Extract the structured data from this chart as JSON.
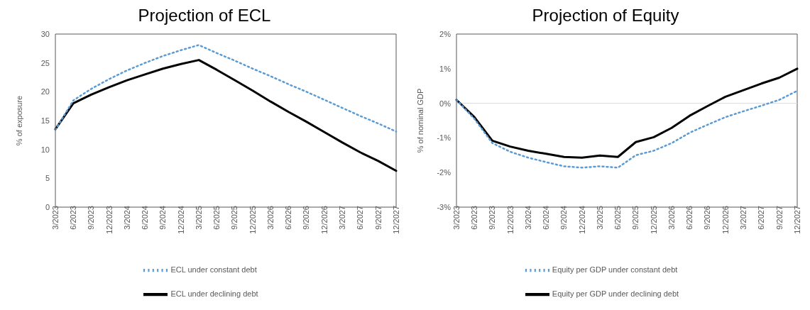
{
  "chart_data": [
    {
      "type": "line",
      "title": "Projection of ECL",
      "ylabel": "% of exposure",
      "categories": [
        "3/2023",
        "6/2023",
        "9/2023",
        "12/2023",
        "3/2024",
        "6/2024",
        "9/2024",
        "12/2024",
        "3/2025",
        "6/2025",
        "9/2025",
        "12/2025",
        "3/2026",
        "6/2026",
        "9/2026",
        "12/2026",
        "3/2027",
        "6/2027",
        "9/2027",
        "12/2027"
      ],
      "series": [
        {
          "name": "ECL under declining debt",
          "color": "#000000",
          "line_style": "solid",
          "values": [
            13.5,
            18,
            19.5,
            20.8,
            22,
            23,
            24,
            24.8,
            25.5,
            23.8,
            22,
            20.2,
            18.3,
            16.5,
            14.8,
            13,
            11.2,
            9.5,
            8,
            6.3
          ]
        },
        {
          "name": "ECL under constant debt",
          "color": "#5b9bd5",
          "line_style": "dotted",
          "values": [
            13.4,
            18.5,
            20.5,
            22.2,
            23.7,
            25,
            26.2,
            27.2,
            28.1,
            26.7,
            25.4,
            24,
            22.7,
            21.3,
            20,
            18.6,
            17.2,
            15.8,
            14.5,
            13.1
          ]
        }
      ],
      "ylim": [
        0,
        30
      ],
      "yticks": [
        0,
        5,
        10,
        15,
        20,
        25,
        30
      ],
      "grid": false,
      "legend": "bottom",
      "marker": "none"
    },
    {
      "type": "line",
      "title": "Projection of Equity",
      "ylabel": "% of nominal GDP",
      "categories": [
        "3/2023",
        "6/2023",
        "9/2023",
        "12/2023",
        "3/2024",
        "6/2024",
        "9/2024",
        "12/2024",
        "3/2025",
        "6/2025",
        "9/2025",
        "12/2025",
        "3/2026",
        "6/2026",
        "9/2026",
        "12/2026",
        "3/2027",
        "6/2027",
        "9/2027",
        "12/2027"
      ],
      "series": [
        {
          "name": "Equity per GDP under declining debt",
          "color": "#000000",
          "line_style": "solid",
          "values": [
            0.1,
            -0.4,
            -1.08,
            -1.25,
            -1.37,
            -1.46,
            -1.55,
            -1.57,
            -1.51,
            -1.55,
            -1.12,
            -0.98,
            -0.71,
            -0.36,
            -0.08,
            0.19,
            0.38,
            0.57,
            0.74,
            1.0
          ]
        },
        {
          "name": "Equity per GDP under constant debt",
          "color": "#5b9bd5",
          "line_style": "dotted",
          "values": [
            0.1,
            -0.45,
            -1.15,
            -1.4,
            -1.57,
            -1.7,
            -1.82,
            -1.86,
            -1.82,
            -1.86,
            -1.5,
            -1.37,
            -1.15,
            -0.85,
            -0.62,
            -0.4,
            -0.23,
            -0.07,
            0.1,
            0.36
          ]
        }
      ],
      "ylim": [
        -3,
        2
      ],
      "yticks": [
        {
          "value": -3,
          "label": "-3%"
        },
        {
          "value": -2,
          "label": "-2%"
        },
        {
          "value": -1,
          "label": "-1%"
        },
        {
          "value": 0,
          "label": "0%"
        },
        {
          "value": 1,
          "label": "1%"
        },
        {
          "value": 2,
          "label": "2%"
        }
      ],
      "ref_lines": [
        {
          "axis": "y",
          "value": 0,
          "color": "#d9d9d9"
        }
      ],
      "grid": false,
      "legend": "bottom",
      "marker": "none"
    }
  ]
}
